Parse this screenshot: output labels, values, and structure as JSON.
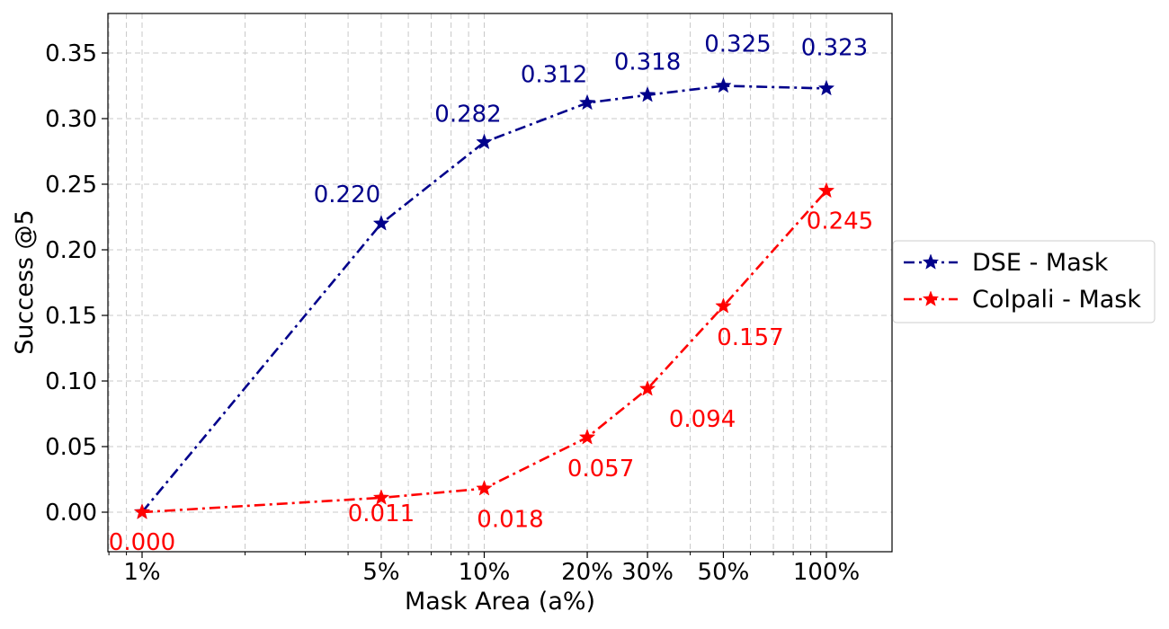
{
  "chart_data": {
    "type": "line",
    "title": "",
    "xlabel": "Mask Area (a%)",
    "ylabel": "Success @5",
    "x_scale": "log",
    "x": [
      1,
      5,
      10,
      20,
      30,
      50,
      100
    ],
    "x_tick_labels": [
      "1%",
      "5%",
      "10%",
      "20%",
      "30%",
      "50%",
      "100%"
    ],
    "ylim": [
      -0.03,
      0.38
    ],
    "y_ticks": [
      0.0,
      0.05,
      0.1,
      0.15,
      0.2,
      0.25,
      0.3,
      0.35
    ],
    "y_tick_labels": [
      "0.00",
      "0.05",
      "0.10",
      "0.15",
      "0.20",
      "0.25",
      "0.30",
      "0.35"
    ],
    "grid": true,
    "legend_position": "right",
    "series": [
      {
        "name": "DSE - Mask",
        "color": "#00008b",
        "values": [
          0.0,
          0.22,
          0.282,
          0.312,
          0.318,
          0.325,
          0.323
        ],
        "value_labels": [
          "",
          "0.220",
          "0.282",
          "0.312",
          "0.318",
          "0.325",
          "0.323"
        ]
      },
      {
        "name": "Colpali - Mask",
        "color": "#ff0000",
        "values": [
          0.0,
          0.011,
          0.018,
          0.057,
          0.094,
          0.157,
          0.245
        ],
        "value_labels": [
          "0.000",
          "0.011",
          "0.018",
          "0.057",
          "0.094",
          "0.157",
          "0.245"
        ]
      }
    ]
  }
}
